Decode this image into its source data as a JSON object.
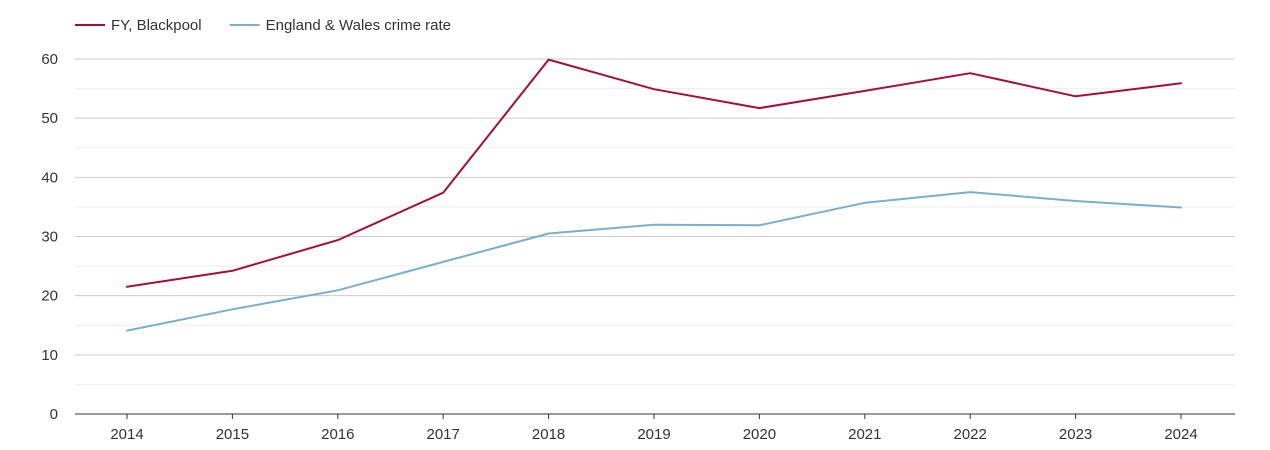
{
  "chart_data": {
    "type": "line",
    "title": "",
    "xlabel": "",
    "ylabel": "",
    "categories": [
      "2014",
      "2015",
      "2016",
      "2017",
      "2018",
      "2019",
      "2020",
      "2021",
      "2022",
      "2023",
      "2024"
    ],
    "ylim": [
      0,
      60
    ],
    "y_ticks": [
      "0",
      "10",
      "20",
      "30",
      "40",
      "50",
      "60"
    ],
    "grid": true,
    "legend_position": "top-left",
    "series": [
      {
        "name": "FY, Blackpool",
        "color": "#a50f34",
        "values": [
          21.5,
          24.2,
          29.4,
          37.4,
          59.9,
          54.9,
          51.7,
          54.6,
          57.6,
          53.7,
          55.9
        ]
      },
      {
        "name": "England & Wales crime rate",
        "color": "#79aecf",
        "values": [
          14.1,
          17.7,
          20.9,
          25.7,
          30.5,
          32.0,
          31.9,
          35.7,
          37.5,
          36.0,
          34.9
        ]
      }
    ]
  }
}
